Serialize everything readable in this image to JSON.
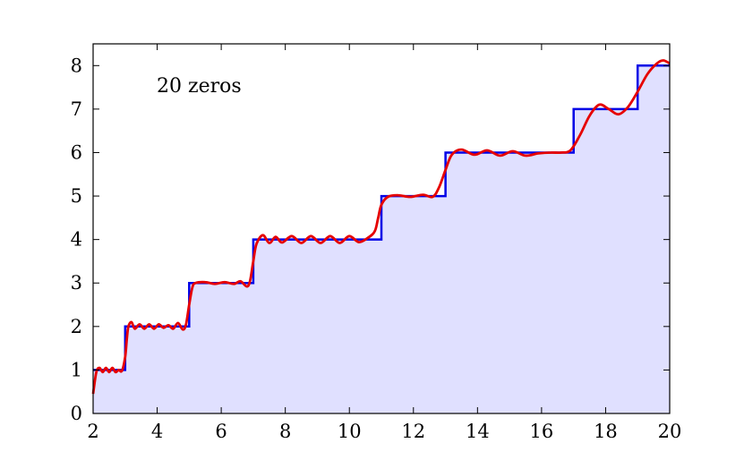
{
  "chart_data": {
    "type": "line",
    "annotation": "20 zeros",
    "xlim": [
      2,
      20
    ],
    "ylim": [
      0,
      8.5
    ],
    "x_ticks": [
      2,
      4,
      6,
      8,
      10,
      12,
      14,
      16,
      18,
      20
    ],
    "y_ticks": [
      0,
      1,
      2,
      3,
      4,
      5,
      6,
      7,
      8
    ],
    "grid": false,
    "legend": "none",
    "series": [
      {
        "style": "step",
        "color": "#0000e6",
        "fill": "#e0e0ff",
        "x": [
          2,
          3,
          5,
          7,
          11,
          13,
          17,
          19,
          20
        ],
        "y": [
          1,
          2,
          3,
          4,
          5,
          6,
          7,
          8,
          8
        ]
      },
      {
        "style": "smooth",
        "color": "#e60000",
        "x": [
          2.0,
          2.1,
          2.2,
          2.3,
          2.4,
          2.5,
          2.6,
          2.7,
          2.8,
          2.9,
          3.0,
          3.05,
          3.1,
          3.2,
          3.3,
          3.45,
          3.6,
          3.75,
          3.9,
          4.05,
          4.2,
          4.35,
          4.5,
          4.65,
          4.8,
          4.9,
          5.0,
          5.1,
          5.2,
          5.5,
          5.8,
          6.1,
          6.4,
          6.6,
          6.8,
          6.9,
          7.0,
          7.1,
          7.3,
          7.5,
          7.7,
          7.9,
          8.2,
          8.5,
          8.8,
          9.1,
          9.4,
          9.7,
          10.0,
          10.3,
          10.6,
          10.8,
          10.9,
          11.0,
          11.2,
          11.5,
          11.9,
          12.3,
          12.6,
          12.8,
          13.0,
          13.2,
          13.5,
          13.9,
          14.3,
          14.7,
          15.1,
          15.5,
          15.9,
          16.3,
          16.6,
          16.9,
          17.2,
          17.5,
          17.8,
          18.1,
          18.4,
          18.7,
          19.0,
          19.3,
          19.6,
          19.8,
          20.0
        ],
        "y": [
          0.45,
          0.95,
          1.05,
          0.95,
          1.05,
          0.95,
          1.05,
          0.95,
          1.0,
          0.98,
          1.3,
          1.7,
          2.0,
          2.1,
          1.95,
          2.05,
          1.95,
          2.05,
          1.95,
          2.05,
          1.97,
          2.03,
          1.95,
          2.08,
          1.93,
          2.05,
          2.5,
          2.9,
          3.0,
          3.02,
          2.98,
          3.02,
          2.98,
          3.04,
          2.92,
          3.05,
          3.5,
          3.9,
          4.1,
          3.92,
          4.06,
          3.93,
          4.08,
          3.92,
          4.08,
          3.92,
          4.08,
          3.92,
          4.08,
          3.94,
          4.05,
          4.2,
          4.5,
          4.8,
          4.98,
          5.02,
          4.98,
          5.03,
          4.98,
          5.2,
          5.6,
          5.95,
          6.07,
          5.95,
          6.05,
          5.93,
          6.03,
          5.93,
          5.98,
          6.0,
          6.0,
          6.05,
          6.4,
          6.85,
          7.1,
          7.0,
          6.88,
          7.05,
          7.4,
          7.8,
          8.05,
          8.12,
          8.05
        ]
      }
    ]
  }
}
